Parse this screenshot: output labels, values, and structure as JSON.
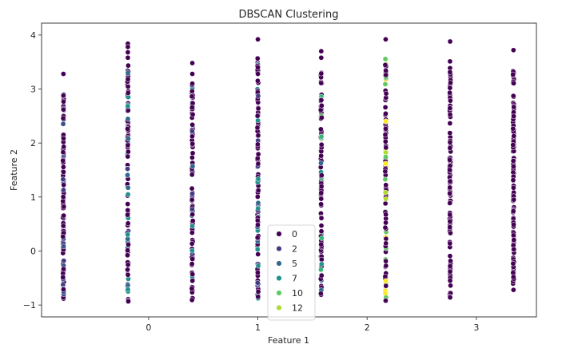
{
  "chart_data": {
    "type": "scatter",
    "title": "DBSCAN Clustering",
    "xlabel": "Feature 1",
    "ylabel": "Feature 2",
    "xlim": [
      -0.98,
      3.55
    ],
    "ylim": [
      -1.22,
      4.22
    ],
    "x_ticks": [
      0,
      1,
      2,
      3
    ],
    "x_tick_labels": [
      "0",
      "1",
      "2",
      "3"
    ],
    "y_ticks": [
      -1,
      0,
      1,
      2,
      3,
      4
    ],
    "y_tick_labels": [
      "−1",
      "0",
      "1",
      "2",
      "3",
      "4"
    ],
    "grid": false,
    "legend_placement": "bottom-center",
    "legend_entries": [
      "0",
      "2",
      "5",
      "7",
      "10",
      "12"
    ],
    "legend_colors": [
      "#440154",
      "#443a83",
      "#31688e",
      "#21918c",
      "#5ec962",
      "#addc30"
    ],
    "strips": [
      {
        "x": -0.78,
        "y_min": -0.95,
        "y_max": 3.28,
        "dominant": "#440154",
        "accents": [
          "#443a83",
          "#3b528b"
        ],
        "outliers": [
          2.88,
          2.62,
          3.28
        ]
      },
      {
        "x": -0.19,
        "y_min": -0.95,
        "y_max": 3.84,
        "dominant": "#440154",
        "accents": [
          "#443a83",
          "#31688e",
          "#21918c"
        ],
        "outliers": [
          3.84,
          3.78,
          3.68,
          3.58
        ]
      },
      {
        "x": 0.4,
        "y_min": -0.92,
        "y_max": 3.48,
        "dominant": "#440154",
        "accents": [
          "#443a83",
          "#31688e",
          "#21918c"
        ],
        "outliers": [
          3.48,
          3.28,
          3.1
        ]
      },
      {
        "x": 1.0,
        "y_min": -0.9,
        "y_max": 3.92,
        "dominant": "#440154",
        "accents": [
          "#443a83",
          "#31688e",
          "#21918c"
        ],
        "outliers": [
          3.92,
          3.4,
          3.28
        ]
      },
      {
        "x": 1.58,
        "y_min": -0.82,
        "y_max": 3.7,
        "dominant": "#440154",
        "accents": [
          "#31688e",
          "#21918c",
          "#35b779",
          "#5ec962"
        ],
        "outliers": [
          3.7,
          3.58
        ]
      },
      {
        "x": 2.17,
        "y_min": -0.92,
        "y_max": 3.92,
        "dominant": "#440154",
        "accents": [
          "#fde725",
          "#addc30",
          "#5ec962"
        ],
        "outliers": [
          3.92,
          -0.92
        ]
      },
      {
        "x": 2.76,
        "y_min": -0.86,
        "y_max": 3.88,
        "dominant": "#440154",
        "accents": [],
        "outliers": [
          3.88,
          -0.86,
          -0.55,
          -0.38,
          -0.28
        ]
      },
      {
        "x": 3.34,
        "y_min": -0.72,
        "y_max": 3.72,
        "dominant": "#440154",
        "accents": [],
        "outliers": [
          -0.72,
          -0.48,
          3.72
        ]
      }
    ]
  }
}
